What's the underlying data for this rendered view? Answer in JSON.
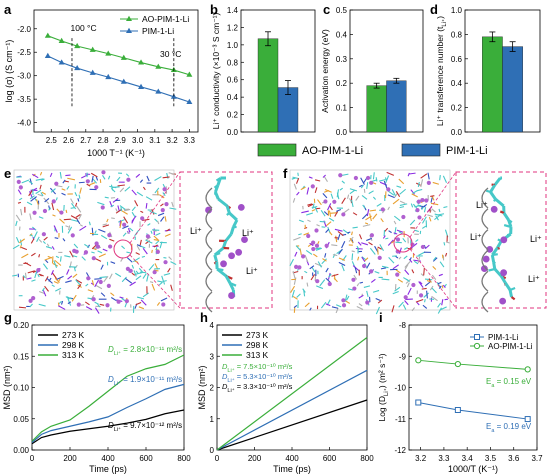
{
  "panel_letters": [
    "a",
    "b",
    "c",
    "d",
    "e",
    "f",
    "g",
    "h",
    "i"
  ],
  "legend_bottom": {
    "green_label": "AO-PIM-1-Li",
    "blue_label": "PIM-1-Li"
  },
  "colors": {
    "green": "#3aae3a",
    "blue": "#2f6fb5",
    "black": "#000000",
    "pink": "#e0357f",
    "teal": "#46c8c8"
  },
  "panels_ef": {
    "li_label": "Li⁺",
    "e_labels": [
      "Li⁺",
      "Li⁺",
      "Li⁺"
    ],
    "f_labels": [
      "Li⁺",
      "Li⁺",
      "Li⁺",
      "Li⁺"
    ]
  },
  "chart_data": [
    {
      "id": "a",
      "type": "line",
      "xlabel": "1000 T⁻¹ (K⁻¹)",
      "ylabel": "log (σ) (S cm⁻¹)",
      "xlim": [
        2.4,
        3.35
      ],
      "ylim": [
        -4.2,
        -1.6
      ],
      "xticks": [
        "2.5",
        "2.6",
        "2.7",
        "2.8",
        "2.9",
        "3.0",
        "3.1",
        "3.2",
        "3.3"
      ],
      "yticks": [
        "-4.0",
        "-3.5",
        "-3.0",
        "-2.5",
        "-2.0"
      ],
      "annotations": [
        "100 °C",
        "30 °C"
      ],
      "series": [
        {
          "name": "AO-PIM-1-Li",
          "color": "#3aae3a",
          "marker": "triangle",
          "x": [
            2.48,
            2.56,
            2.65,
            2.74,
            2.83,
            2.92,
            3.02,
            3.12,
            3.21,
            3.3
          ],
          "y": [
            -2.15,
            -2.26,
            -2.37,
            -2.45,
            -2.53,
            -2.62,
            -2.72,
            -2.81,
            -2.88,
            -2.98
          ]
        },
        {
          "name": "PIM-1-Li",
          "color": "#2f6fb5",
          "marker": "triangle",
          "x": [
            2.48,
            2.56,
            2.65,
            2.74,
            2.83,
            2.92,
            3.02,
            3.12,
            3.21,
            3.3
          ],
          "y": [
            -2.58,
            -2.72,
            -2.84,
            -2.94,
            -3.03,
            -3.13,
            -3.24,
            -3.34,
            -3.45,
            -3.56
          ]
        }
      ]
    },
    {
      "id": "b",
      "type": "bar",
      "ylabel": "Li⁺ conductivity (×10⁻³ S cm⁻¹)",
      "ylim": [
        0,
        1.4
      ],
      "yticks": [
        "0.0",
        "0.2",
        "0.4",
        "0.6",
        "0.8",
        "1.0",
        "1.2",
        "1.4"
      ],
      "series": [
        {
          "name": "AO-PIM-1-Li",
          "value": 1.07,
          "err": 0.08
        },
        {
          "name": "PIM-1-Li",
          "value": 0.51,
          "err": 0.08
        }
      ]
    },
    {
      "id": "c",
      "type": "bar",
      "ylabel": "Activation energy (eV)",
      "ylim": [
        0,
        0.5
      ],
      "yticks": [
        "0.0",
        "0.1",
        "0.2",
        "0.3",
        "0.4",
        "0.5"
      ],
      "series": [
        {
          "name": "AO-PIM-1-Li",
          "value": 0.19,
          "err": 0.01
        },
        {
          "name": "PIM-1-Li",
          "value": 0.21,
          "err": 0.01
        }
      ]
    },
    {
      "id": "d",
      "type": "bar",
      "ylabel": "Li⁺ transference number (t",
      "ylabel_sub": "Li⁺",
      "ylabel_end": ")",
      "ylim": [
        0,
        1.0
      ],
      "yticks": [
        "0.0",
        "0.2",
        "0.4",
        "0.6",
        "0.8",
        "1.0"
      ],
      "series": [
        {
          "name": "AO-PIM-1-Li",
          "value": 0.78,
          "err": 0.04
        },
        {
          "name": "PIM-1-Li",
          "value": 0.7,
          "err": 0.04
        }
      ]
    },
    {
      "id": "g",
      "type": "line",
      "xlabel": "Time (ps)",
      "ylabel": "MSD (nm²)",
      "xlim": [
        0,
        800
      ],
      "ylim": [
        0,
        0.2
      ],
      "xticks": [
        "0",
        "200",
        "400",
        "600",
        "800"
      ],
      "yticks": [
        "0.00",
        "0.05",
        "0.10",
        "0.15",
        "0.20"
      ],
      "annotations": [
        "D",
        "Li⁺",
        "= 2.8×10⁻¹¹ m²/s",
        "= 1.9×10⁻¹¹ m²/s",
        "= 9.7×10⁻¹² m²/s"
      ],
      "series": [
        {
          "name": "273 K",
          "color": "#000000",
          "x": [
            0,
            50,
            100,
            200,
            300,
            400,
            500,
            600,
            700,
            800
          ],
          "y": [
            0.01,
            0.02,
            0.024,
            0.03,
            0.034,
            0.038,
            0.043,
            0.049,
            0.058,
            0.064
          ]
        },
        {
          "name": "298 K",
          "color": "#2f6fb5",
          "x": [
            0,
            50,
            100,
            200,
            300,
            400,
            500,
            600,
            700,
            800
          ],
          "y": [
            0.012,
            0.025,
            0.031,
            0.038,
            0.045,
            0.053,
            0.068,
            0.082,
            0.097,
            0.105
          ]
        },
        {
          "name": "313 K",
          "color": "#3aae3a",
          "x": [
            0,
            50,
            100,
            200,
            300,
            400,
            500,
            600,
            700,
            800
          ],
          "y": [
            0.014,
            0.029,
            0.038,
            0.048,
            0.07,
            0.094,
            0.118,
            0.13,
            0.137,
            0.152
          ]
        }
      ]
    },
    {
      "id": "h",
      "type": "line",
      "xlabel": "Time (ps)",
      "ylabel": "MSD (nm²)",
      "xlim": [
        0,
        800
      ],
      "ylim": [
        0,
        4
      ],
      "xticks": [
        "0",
        "200",
        "400",
        "600",
        "800"
      ],
      "yticks": [
        "0",
        "1",
        "2",
        "3",
        "4"
      ],
      "annotations": [
        "= 7.5×10⁻¹⁰ m²/s",
        "= 5.3×10⁻¹⁰ m²/s",
        "= 3.3×10⁻¹⁰ m²/s"
      ],
      "series": [
        {
          "name": "273 K",
          "color": "#000000",
          "x": [
            0,
            800
          ],
          "y": [
            0.0,
            1.6
          ]
        },
        {
          "name": "298 K",
          "color": "#2f6fb5",
          "x": [
            0,
            800
          ],
          "y": [
            0.0,
            2.55
          ]
        },
        {
          "name": "313 K",
          "color": "#3aae3a",
          "x": [
            0,
            800
          ],
          "y": [
            0.0,
            3.6
          ]
        }
      ]
    },
    {
      "id": "i",
      "type": "line",
      "xlabel": "1000/T (K⁻¹)",
      "ylabel": "Log (D",
      "ylabel_sub": "Li⁺",
      "ylabel_end": ") (m² s⁻¹)",
      "xlim": [
        3.15,
        3.7
      ],
      "ylim": [
        -12,
        -8
      ],
      "xticks": [
        "3.2",
        "3.3",
        "3.4",
        "3.5",
        "3.6",
        "3.7"
      ],
      "yticks": [
        "-12",
        "-11",
        "-10",
        "-9",
        "-8"
      ],
      "annotations": [
        "E",
        "a",
        "= 0.15 eV",
        "= 0.19 eV"
      ],
      "series": [
        {
          "name": "PIM-1-Li",
          "color": "#2f6fb5",
          "marker": "square",
          "x": [
            3.19,
            3.36,
            3.66
          ],
          "y": [
            -10.48,
            -10.72,
            -11.01
          ]
        },
        {
          "name": "AO-PIM-1-Li",
          "color": "#3aae3a",
          "marker": "circle",
          "x": [
            3.19,
            3.36,
            3.66
          ],
          "y": [
            -9.13,
            -9.25,
            -9.42
          ]
        }
      ]
    }
  ]
}
